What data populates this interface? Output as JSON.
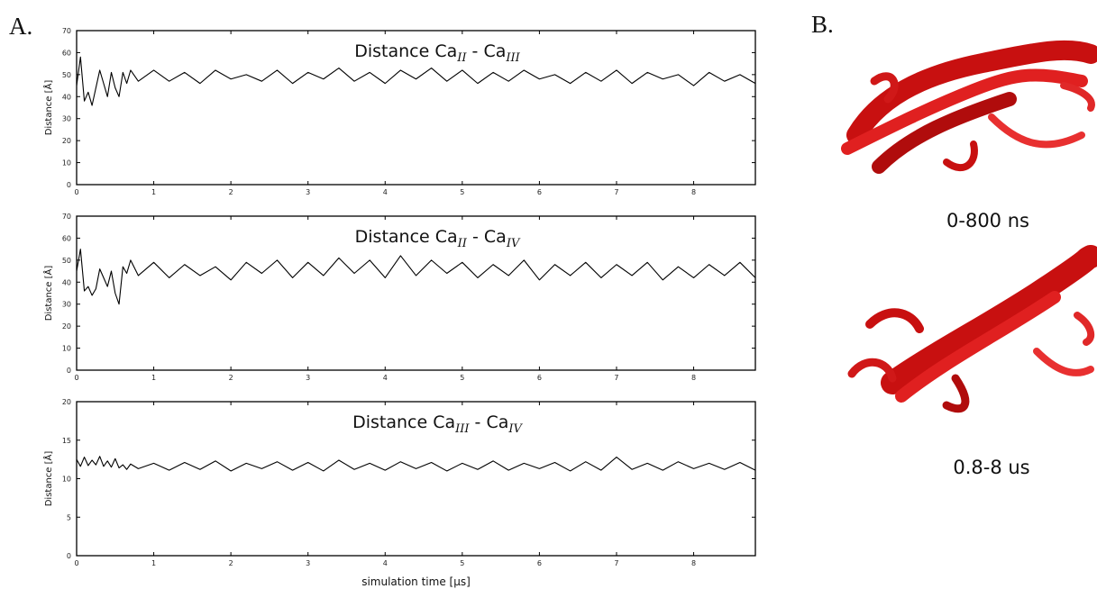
{
  "chart_data": [
    {
      "type": "line",
      "title": [
        "Distance Ca",
        "II",
        " - Ca",
        "III"
      ],
      "ylabel": "Distance [Å]",
      "x": [
        0,
        0.05,
        0.1,
        0.15,
        0.2,
        0.25,
        0.3,
        0.35,
        0.4,
        0.45,
        0.5,
        0.55,
        0.6,
        0.65,
        0.7,
        0.8,
        1,
        1.2,
        1.4,
        1.6,
        1.8,
        2,
        2.2,
        2.4,
        2.6,
        2.8,
        3,
        3.2,
        3.4,
        3.6,
        3.8,
        4,
        4.2,
        4.4,
        4.6,
        4.8,
        5,
        5.2,
        5.4,
        5.6,
        5.8,
        6,
        6.2,
        6.4,
        6.6,
        6.8,
        7,
        7.2,
        7.4,
        7.6,
        7.8,
        8,
        8.2,
        8.4,
        8.6,
        8.8
      ],
      "series": [
        {
          "color": "#000000",
          "values": [
            45,
            58,
            38,
            42,
            36,
            44,
            52,
            46,
            40,
            51,
            44,
            40,
            51,
            46,
            52,
            47,
            52,
            47,
            51,
            46,
            52,
            48,
            50,
            47,
            52,
            46,
            51,
            48,
            53,
            47,
            51,
            46,
            52,
            48,
            53,
            47,
            52,
            46,
            51,
            47,
            52,
            48,
            50,
            46,
            51,
            47,
            52,
            46,
            51,
            48,
            50,
            45,
            51,
            47,
            50,
            46
          ]
        }
      ],
      "xlim": [
        0,
        8.8
      ],
      "xticks": [
        0,
        1,
        2,
        3,
        4,
        5,
        6,
        7,
        8
      ],
      "ylim": [
        0,
        70
      ],
      "yticks": [
        0,
        10,
        20,
        30,
        40,
        50,
        60,
        70
      ]
    },
    {
      "type": "line",
      "title": [
        "Distance Ca",
        "II",
        " - Ca",
        "IV"
      ],
      "ylabel": "Distance [Å]",
      "x": [
        0,
        0.05,
        0.1,
        0.15,
        0.2,
        0.25,
        0.3,
        0.35,
        0.4,
        0.45,
        0.5,
        0.55,
        0.6,
        0.65,
        0.7,
        0.8,
        1,
        1.2,
        1.4,
        1.6,
        1.8,
        2,
        2.2,
        2.4,
        2.6,
        2.8,
        3,
        3.2,
        3.4,
        3.6,
        3.8,
        4,
        4.2,
        4.4,
        4.6,
        4.8,
        5,
        5.2,
        5.4,
        5.6,
        5.8,
        6,
        6.2,
        6.4,
        6.6,
        6.8,
        7,
        7.2,
        7.4,
        7.6,
        7.8,
        8,
        8.2,
        8.4,
        8.6,
        8.8
      ],
      "series": [
        {
          "color": "#000000",
          "values": [
            45,
            55,
            36,
            38,
            34,
            37,
            46,
            42,
            38,
            45,
            35,
            30,
            47,
            44,
            50,
            43,
            49,
            42,
            48,
            43,
            47,
            41,
            49,
            44,
            50,
            42,
            49,
            43,
            51,
            44,
            50,
            42,
            52,
            43,
            50,
            44,
            49,
            42,
            48,
            43,
            50,
            41,
            48,
            43,
            49,
            42,
            48,
            43,
            49,
            41,
            47,
            42,
            48,
            43,
            49,
            42
          ]
        }
      ],
      "xlim": [
        0,
        8.8
      ],
      "xticks": [
        0,
        1,
        2,
        3,
        4,
        5,
        6,
        7,
        8
      ],
      "ylim": [
        0,
        70
      ],
      "yticks": [
        0,
        10,
        20,
        30,
        40,
        50,
        60,
        70
      ]
    },
    {
      "type": "line",
      "title": [
        "Distance Ca",
        "III",
        " - Ca",
        "IV"
      ],
      "ylabel": "Distance [Å]",
      "xlabel": "simulation time [μs]",
      "x": [
        0,
        0.05,
        0.1,
        0.15,
        0.2,
        0.25,
        0.3,
        0.35,
        0.4,
        0.45,
        0.5,
        0.55,
        0.6,
        0.65,
        0.7,
        0.8,
        1,
        1.2,
        1.4,
        1.6,
        1.8,
        2,
        2.2,
        2.4,
        2.6,
        2.8,
        3,
        3.2,
        3.4,
        3.6,
        3.8,
        4,
        4.2,
        4.4,
        4.6,
        4.8,
        5,
        5.2,
        5.4,
        5.6,
        5.8,
        6,
        6.2,
        6.4,
        6.6,
        6.8,
        7,
        7.2,
        7.4,
        7.6,
        7.8,
        8,
        8.2,
        8.4,
        8.6,
        8.8
      ],
      "series": [
        {
          "color": "#000000",
          "values": [
            12.5,
            11.6,
            12.8,
            11.7,
            12.4,
            11.8,
            12.9,
            11.6,
            12.3,
            11.5,
            12.6,
            11.4,
            11.8,
            11.2,
            11.9,
            11.3,
            12.0,
            11.1,
            12.1,
            11.2,
            12.3,
            11.0,
            12.0,
            11.3,
            12.2,
            11.1,
            12.1,
            11.0,
            12.4,
            11.2,
            12.0,
            11.1,
            12.2,
            11.3,
            12.1,
            11.0,
            12.0,
            11.2,
            12.3,
            11.1,
            12.0,
            11.3,
            12.1,
            11.0,
            12.2,
            11.1,
            12.8,
            11.2,
            12.0,
            11.1,
            12.2,
            11.3,
            12.0,
            11.2,
            12.1,
            11.1
          ]
        }
      ],
      "xlim": [
        0,
        8.8
      ],
      "xticks": [
        0,
        1,
        2,
        3,
        4,
        5,
        6,
        7,
        8
      ],
      "ylim": [
        0,
        20
      ],
      "yticks": [
        0,
        5,
        10,
        15,
        20
      ]
    }
  ],
  "panels": {
    "a_label": "A.",
    "b_label": "B.",
    "captions": [
      "0-800 ns",
      "0.8-8 us"
    ]
  }
}
